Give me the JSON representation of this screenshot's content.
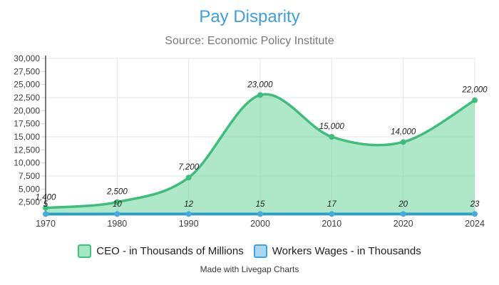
{
  "header": {
    "title": "Pay Disparity",
    "subtitle": "Source: Economic Policy Institute"
  },
  "footer": {
    "credit": "Made with Livegap Charts"
  },
  "colors": {
    "title_text": "#3e9ede",
    "subtitle_text": "#75787b",
    "ceo_line": "#3dbe7d",
    "ceo_fill": "rgba(94, 209, 148, 0.5)",
    "workers_line": "#2b9ec9",
    "workers_point": "#45aade",
    "grid": "#e4e4e4",
    "minor_tick": "#cfcfcf",
    "y_axis": "#4d4d4d",
    "tick_text": "#3d3d3d",
    "data_label_text": "#1c1c1c"
  },
  "chart_data": {
    "type": "area",
    "title": "Pay Disparity",
    "subtitle": "Source: Economic Policy Institute",
    "categories": [
      "1970",
      "1980",
      "1990",
      "2000",
      "2010",
      "2020",
      "2024"
    ],
    "series": [
      {
        "name": "CEO - in Thousands of Millions",
        "type": "area",
        "values": [
          1400,
          2500,
          7200,
          23000,
          15000,
          14000,
          22000
        ],
        "labels": [
          "1,400",
          "2,500",
          "7,200",
          "23,000",
          "15,000",
          "14,000",
          "22,000"
        ]
      },
      {
        "name": "Workers Wages - in Thousands",
        "type": "line",
        "values": [
          5,
          10,
          12,
          15,
          17,
          20,
          23
        ],
        "labels": [
          "5",
          "10",
          "12",
          "15",
          "17",
          "20",
          "23"
        ]
      }
    ],
    "xlabel": "",
    "ylabel": "",
    "ylim": [
      0,
      30000
    ],
    "yticks": [
      {
        "value": 2500,
        "label": "2,500"
      },
      {
        "value": 5000,
        "label": "5,000"
      },
      {
        "value": 7500,
        "label": "7,500"
      },
      {
        "value": 10000,
        "label": "10,000"
      },
      {
        "value": 12500,
        "label": "12,500"
      },
      {
        "value": 15000,
        "label": "15,000"
      },
      {
        "value": 17500,
        "label": "17,500"
      },
      {
        "value": 20000,
        "label": "20,000"
      },
      {
        "value": 22500,
        "label": "22,500"
      },
      {
        "value": 25000,
        "label": "25,000"
      },
      {
        "value": 27500,
        "label": "27,500"
      },
      {
        "value": 30000,
        "label": "30,000"
      }
    ],
    "gridline_y_values": [
      7500,
      15000,
      22500,
      30000
    ],
    "grid": "on",
    "legend_position": "bottom"
  },
  "legend": {
    "items": [
      {
        "label": "CEO - in Thousands of Millions",
        "swatch_fill": "#a3e8c3",
        "swatch_border": "#3fc380"
      },
      {
        "label": "Workers Wages - in Thousands",
        "swatch_fill": "#aad7f2",
        "swatch_border": "#3ea2e5"
      }
    ]
  }
}
